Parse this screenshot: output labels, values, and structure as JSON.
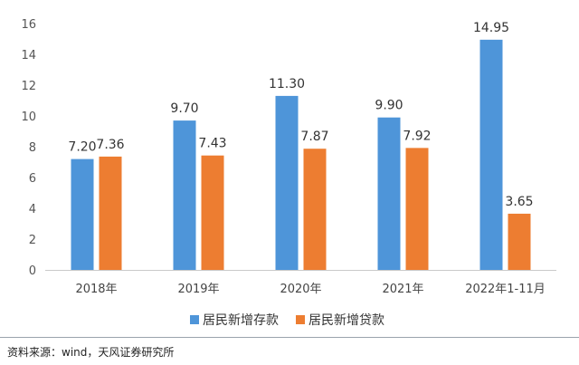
{
  "chart_data": {
    "type": "bar",
    "categories": [
      "2018年",
      "2019年",
      "2020年",
      "2021年",
      "2022年1-11月"
    ],
    "series": [
      {
        "name": "居民新增存款",
        "color": "#4e95d9",
        "values": [
          7.2,
          9.7,
          11.3,
          9.9,
          14.95
        ],
        "labels": [
          "7.20",
          "9.70",
          "11.30",
          "9.90",
          "14.95"
        ]
      },
      {
        "name": "居民新增贷款",
        "color": "#ed7d31",
        "values": [
          7.36,
          7.43,
          7.87,
          7.92,
          3.65
        ],
        "labels": [
          "7.36",
          "7.43",
          "7.87",
          "7.92",
          "3.65"
        ]
      }
    ],
    "ylim": [
      0,
      16
    ],
    "yticks": [
      "0",
      "2",
      "4",
      "6",
      "8",
      "10",
      "12",
      "14",
      "16"
    ],
    "legend_position": "bottom",
    "grid": false,
    "title": "",
    "xlabel": "",
    "ylabel": ""
  },
  "source": "资料来源：wind，天风证券研究所"
}
